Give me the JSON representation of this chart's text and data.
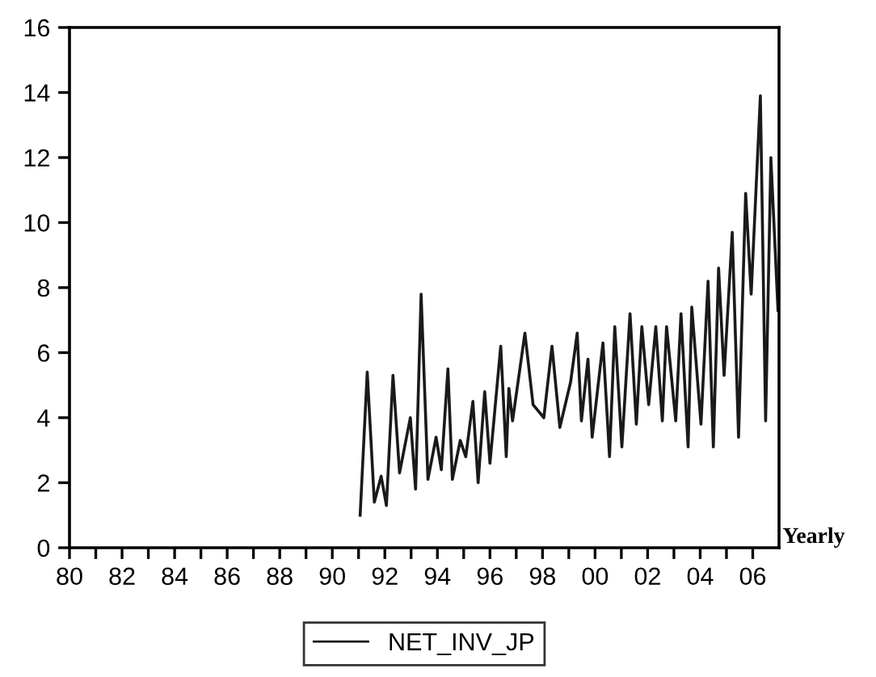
{
  "chart_data": {
    "type": "line",
    "xlabel": "Yearly",
    "legend": "bottom",
    "grid": false,
    "xlim": [
      1980,
      2007
    ],
    "ylim": [
      0,
      16
    ],
    "yticks": [
      0,
      2,
      4,
      6,
      8,
      10,
      12,
      14,
      16
    ],
    "xticks": [
      {
        "value": 1980,
        "label": "80"
      },
      {
        "value": 1981,
        "label": null
      },
      {
        "value": 1982,
        "label": "82"
      },
      {
        "value": 1983,
        "label": null
      },
      {
        "value": 1984,
        "label": "84"
      },
      {
        "value": 1985,
        "label": null
      },
      {
        "value": 1986,
        "label": "86"
      },
      {
        "value": 1987,
        "label": null
      },
      {
        "value": 1988,
        "label": "88"
      },
      {
        "value": 1989,
        "label": null
      },
      {
        "value": 1990,
        "label": "90"
      },
      {
        "value": 1991,
        "label": null
      },
      {
        "value": 1992,
        "label": "92"
      },
      {
        "value": 1993,
        "label": null
      },
      {
        "value": 1994,
        "label": "94"
      },
      {
        "value": 1995,
        "label": null
      },
      {
        "value": 1996,
        "label": "96"
      },
      {
        "value": 1997,
        "label": null
      },
      {
        "value": 1998,
        "label": "98"
      },
      {
        "value": 1999,
        "label": null
      },
      {
        "value": 2000,
        "label": "00"
      },
      {
        "value": 2001,
        "label": null
      },
      {
        "value": 2002,
        "label": "02"
      },
      {
        "value": 2003,
        "label": null
      },
      {
        "value": 2004,
        "label": "04"
      },
      {
        "value": 2005,
        "label": null
      },
      {
        "value": 2006,
        "label": "06"
      }
    ],
    "series": [
      {
        "name": "NET_INV_JP",
        "color": "#1a1a1a",
        "x": [
          1991.06,
          1991.33,
          1991.6,
          1991.86,
          1992.06,
          1992.31,
          1992.56,
          1992.97,
          1993.17,
          1993.38,
          1993.64,
          1993.95,
          1994.15,
          1994.4,
          1994.57,
          1994.87,
          1995.08,
          1995.35,
          1995.55,
          1995.8,
          1996.0,
          1996.41,
          1996.62,
          1996.72,
          1996.86,
          1997.33,
          1997.64,
          1998.05,
          1998.36,
          1998.66,
          1999.07,
          1999.32,
          1999.48,
          1999.73,
          1999.89,
          2000.3,
          2000.55,
          2000.75,
          2001.02,
          2001.33,
          2001.57,
          2001.78,
          2002.04,
          2002.31,
          2002.56,
          2002.72,
          2003.07,
          2003.27,
          2003.54,
          2003.68,
          2004.03,
          2004.3,
          2004.5,
          2004.7,
          2004.91,
          2005.22,
          2005.46,
          2005.73,
          2005.94,
          2006.29,
          2006.49,
          2006.69,
          2006.96
        ],
        "values": [
          1.0,
          5.4,
          1.4,
          2.2,
          1.3,
          5.3,
          2.3,
          4.0,
          1.8,
          7.8,
          2.1,
          3.4,
          2.4,
          5.5,
          2.1,
          3.3,
          2.8,
          4.5,
          2.0,
          4.8,
          2.6,
          6.2,
          2.8,
          4.9,
          3.9,
          6.6,
          4.4,
          4.0,
          6.2,
          3.7,
          5.1,
          6.6,
          3.9,
          5.8,
          3.4,
          6.3,
          2.8,
          6.8,
          3.1,
          7.2,
          3.8,
          6.8,
          4.4,
          6.8,
          3.9,
          6.8,
          3.9,
          7.2,
          3.1,
          7.4,
          3.8,
          8.2,
          3.1,
          8.6,
          5.3,
          9.7,
          3.4,
          10.9,
          7.8,
          13.9,
          3.9,
          12.0,
          7.3
        ]
      }
    ]
  }
}
